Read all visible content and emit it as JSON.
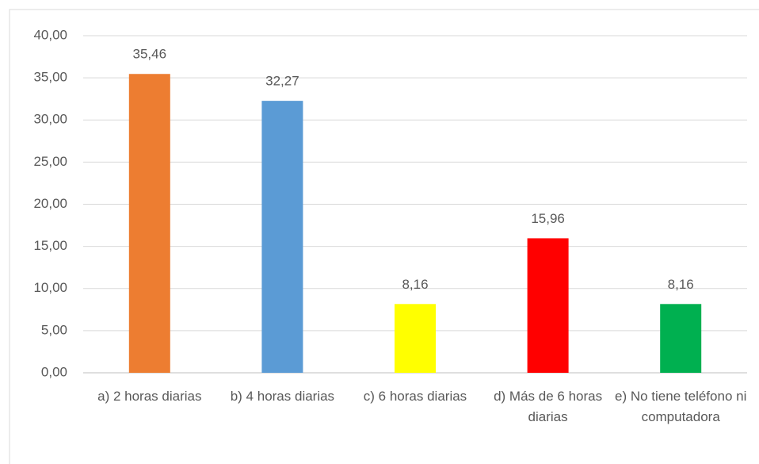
{
  "chart_data": {
    "type": "bar",
    "categories": [
      "a) 2 horas diarias",
      "b) 4 horas diarias",
      "c) 6 horas diarias",
      "d) Más de 6 horas diarias",
      "e) No tiene teléfono ni computadora"
    ],
    "values": [
      35.46,
      32.27,
      8.16,
      15.96,
      8.16
    ],
    "value_labels": [
      "35,46",
      "32,27",
      "8,16",
      "15,96",
      "8,16"
    ],
    "colors": [
      "#ED7D31",
      "#5B9BD5",
      "#FFFF00",
      "#FF0000",
      "#00B050"
    ],
    "ylim": [
      0,
      40
    ],
    "yticks": [
      {
        "value": 0,
        "label": "0,00"
      },
      {
        "value": 5,
        "label": "5,00"
      },
      {
        "value": 10,
        "label": "10,00"
      },
      {
        "value": 15,
        "label": "15,00"
      },
      {
        "value": 20,
        "label": "20,00"
      },
      {
        "value": 25,
        "label": "25,00"
      },
      {
        "value": 30,
        "label": "30,00"
      },
      {
        "value": 35,
        "label": "35,00"
      },
      {
        "value": 40,
        "label": "40,00"
      }
    ],
    "grid": true
  }
}
